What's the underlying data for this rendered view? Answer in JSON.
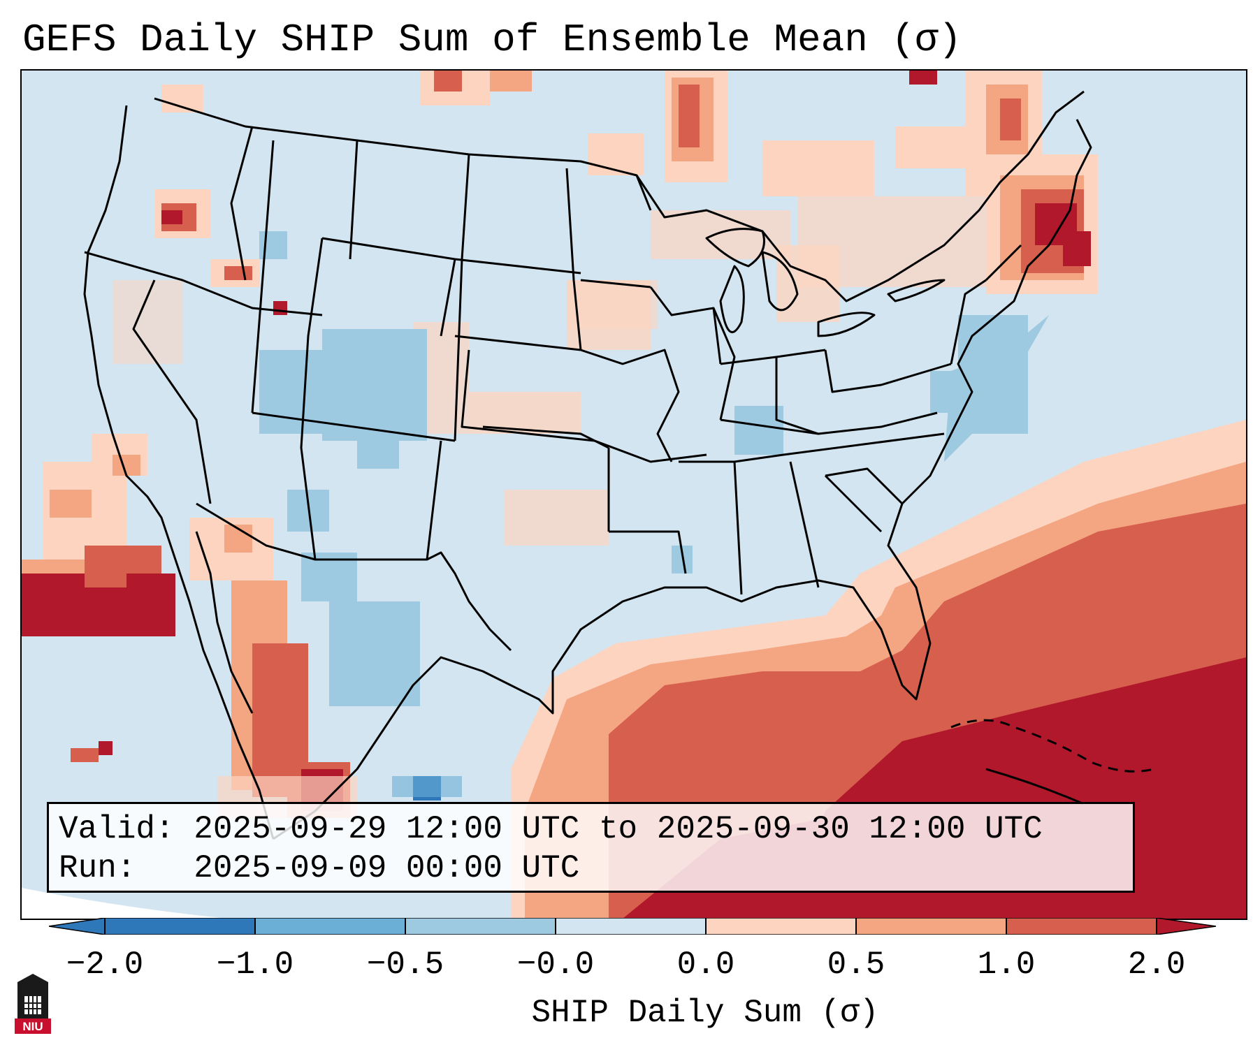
{
  "title": "GEFS Daily SHIP Sum of Ensemble Mean (σ)",
  "info_box": {
    "valid_label": "Valid:",
    "valid_value": "2025-09-29 12:00 UTC to 2025-09-30 12:00 UTC",
    "run_label": "Run:",
    "run_value": "2025-09-09 00:00 UTC"
  },
  "colorbar": {
    "label": "SHIP Daily Sum (σ)",
    "ticks": [
      "−2.0",
      "−1.0",
      "−0.5",
      "−0.0",
      "0.0",
      "0.5",
      "1.0",
      "2.0"
    ],
    "colors": [
      "#2e78b9",
      "#6baed6",
      "#9ecae1",
      "#d3e5f0",
      "#f4f6f8",
      "#fcd4c0",
      "#f4a582",
      "#d6604d",
      "#b2182b"
    ]
  },
  "logo": {
    "text": "NIU"
  },
  "icons": {
    "logo": "niu-building-logo-icon"
  }
}
